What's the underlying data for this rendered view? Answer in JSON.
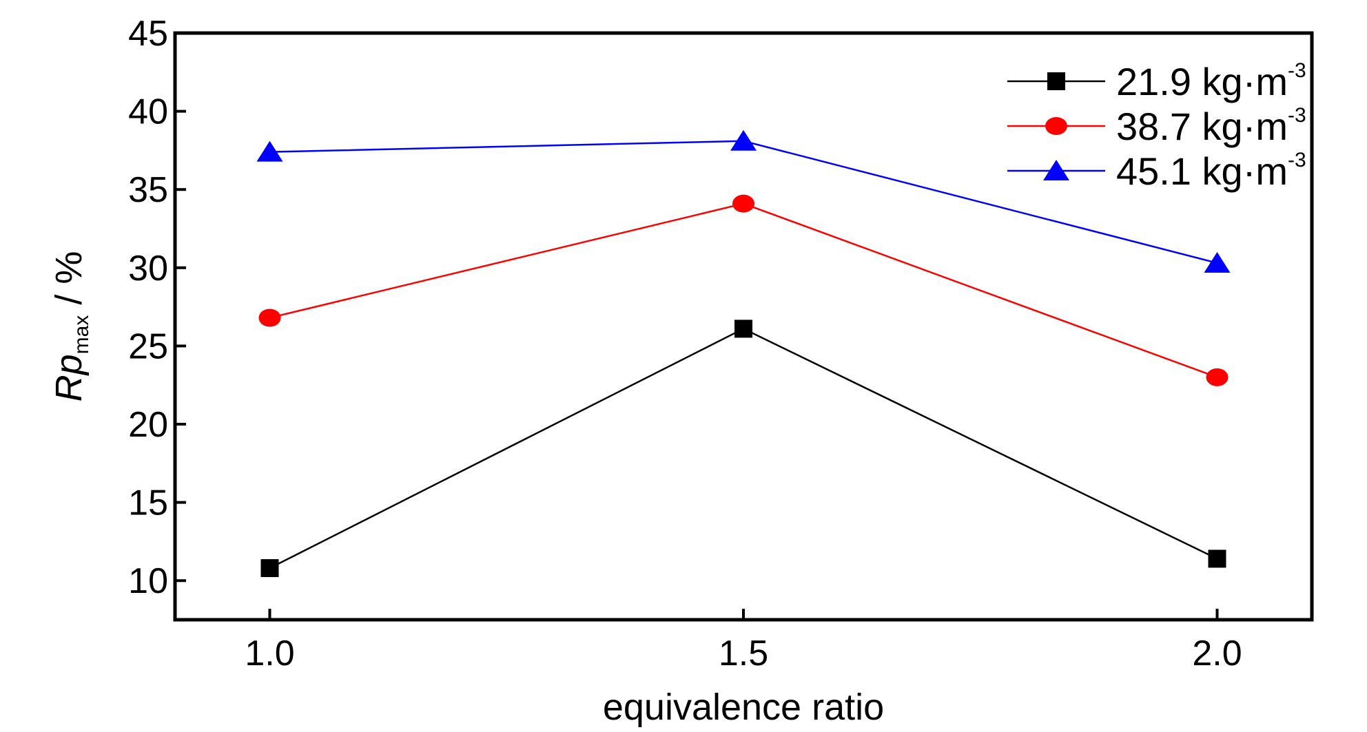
{
  "chart_data": {
    "type": "line",
    "title": "",
    "xlabel": "equivalence ratio",
    "ylabel": {
      "main": "Rp",
      "subscript": "max",
      "suffix": " / %"
    },
    "x": [
      1.0,
      1.5,
      2.0
    ],
    "x_tick_labels": [
      "1.0",
      "1.5",
      "2.0"
    ],
    "xlim": [
      0.9,
      2.1
    ],
    "ylim": [
      7.5,
      45
    ],
    "y_ticks": [
      10,
      15,
      20,
      25,
      30,
      35,
      40,
      45
    ],
    "y_tick_labels": [
      "10",
      "15",
      "20",
      "25",
      "30",
      "35",
      "40",
      "45"
    ],
    "grid": false,
    "legend_position": "top-right",
    "series": [
      {
        "name": "21.9 kg·m",
        "name_superscript": "-3",
        "color": "#000000",
        "marker": "square",
        "values": [
          10.8,
          26.1,
          11.4
        ]
      },
      {
        "name": "38.7 kg·m",
        "name_superscript": "-3",
        "color": "#ff0000",
        "marker": "circle",
        "values": [
          26.8,
          34.1,
          23.0
        ]
      },
      {
        "name": "45.1 kg·m",
        "name_superscript": "-3",
        "color": "#0000ff",
        "marker": "triangle",
        "values": [
          37.4,
          38.1,
          30.3
        ]
      }
    ]
  }
}
